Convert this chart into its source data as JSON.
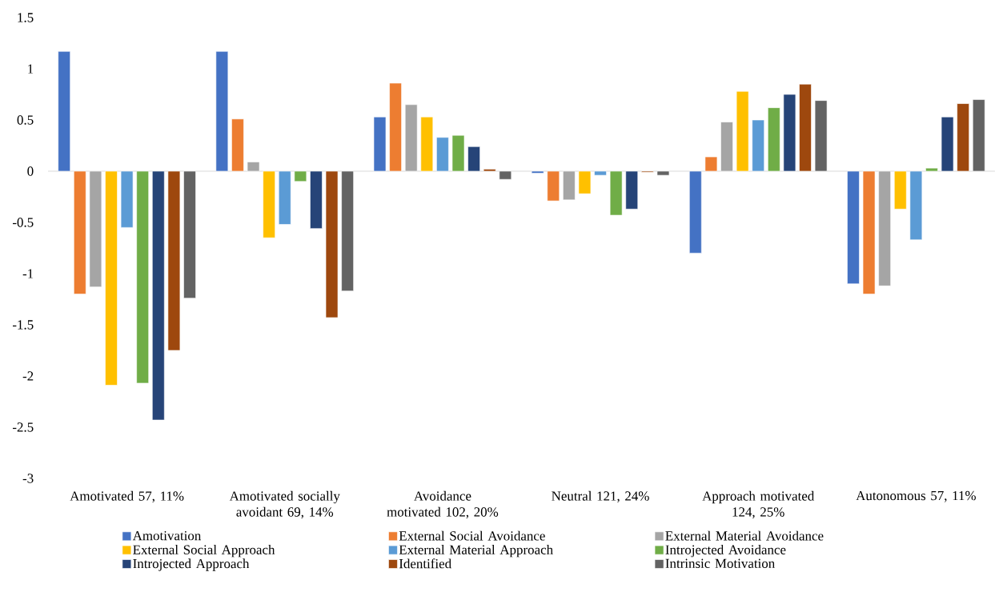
{
  "chart_data": {
    "type": "bar",
    "categories": [
      "Amotivated 57, 11%",
      "Amotivated socially avoidant  69, 14%",
      "Avoidance motivated 102, 20%",
      "Neutral 121, 24%",
      "Approach motivated 124, 25%",
      "Autonomous 57, 11%"
    ],
    "series": [
      {
        "name": "Amotivation",
        "color": "#4472c4",
        "values": [
          1.17,
          1.17,
          0.53,
          -0.02,
          -0.8,
          -1.1
        ]
      },
      {
        "name": "External Social Avoidance",
        "color": "#ed7d31",
        "values": [
          -1.2,
          0.51,
          0.86,
          -0.29,
          0.14,
          -1.2
        ]
      },
      {
        "name": "External Material Avoidance",
        "color": "#a5a5a5",
        "values": [
          -1.13,
          0.09,
          0.65,
          -0.28,
          0.48,
          -1.12
        ]
      },
      {
        "name": "External Social Approach",
        "color": "#ffc000",
        "values": [
          -2.09,
          -0.65,
          0.53,
          -0.22,
          0.78,
          -0.37
        ]
      },
      {
        "name": "External Material Approach",
        "color": "#5b9bd5",
        "values": [
          -0.55,
          -0.52,
          0.33,
          -0.04,
          0.5,
          -0.67
        ]
      },
      {
        "name": "Introjected Avoidance",
        "color": "#70ad47",
        "values": [
          -2.07,
          -0.1,
          0.35,
          -0.43,
          0.62,
          0.03
        ]
      },
      {
        "name": "Introjected Approach",
        "color": "#264478",
        "values": [
          -2.43,
          -0.56,
          0.24,
          -0.37,
          0.75,
          0.53
        ]
      },
      {
        "name": "Identified",
        "color": "#9e480e",
        "values": [
          -1.75,
          -1.43,
          0.02,
          -0.01,
          0.85,
          0.66
        ]
      },
      {
        "name": "Intrinsic Motivation",
        "color": "#636363",
        "values": [
          -1.24,
          -1.17,
          -0.08,
          -0.04,
          0.69,
          0.7
        ]
      }
    ],
    "ylim": [
      -3,
      1.5
    ],
    "yticks": [
      -3,
      -2.5,
      -2,
      -1.5,
      -1,
      -0.5,
      0,
      0.5,
      1,
      1.5
    ],
    "legend": "bottom"
  }
}
